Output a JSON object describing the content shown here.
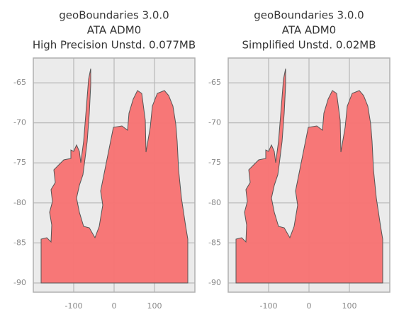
{
  "chart_data": [
    {
      "type": "map",
      "title": [
        "geoBoundaries 3.0.0",
        "ATA ADM0",
        "High Precision Unstd. 0.077MB"
      ],
      "color": "#f87171",
      "xlim": [
        -200,
        200
      ],
      "ylim": [
        -91.15,
        -61.9
      ],
      "xticks": [
        -100,
        0,
        100
      ],
      "yticks": [
        -90,
        -85,
        -80,
        -75,
        -70,
        -65
      ],
      "grid": true
    },
    {
      "type": "map",
      "title": [
        "geoBoundaries 3.0.0",
        "ATA ADM0",
        "Simplified Unstd. 0.02MB"
      ],
      "color": "#f87171",
      "xlim": [
        -200,
        200
      ],
      "ylim": [
        -91.15,
        -61.9
      ],
      "xticks": [
        -100,
        0,
        100
      ],
      "yticks": [
        -90,
        -85,
        -80,
        -75,
        -70,
        -65
      ],
      "grid": true
    }
  ]
}
